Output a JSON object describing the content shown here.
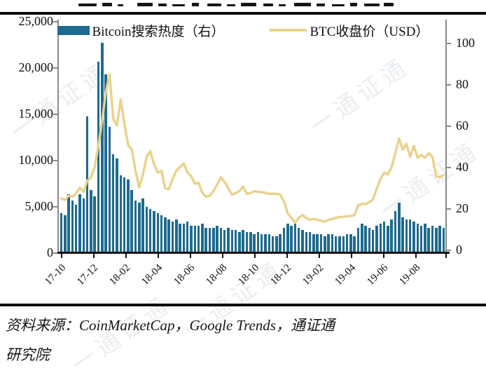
{
  "legend": {
    "bar_label": "Bitcoin搜索热度（右）",
    "line_label": "BTC收盘价（USD）"
  },
  "source": {
    "line1": "资料来源：CoinMarketCap，Google Trends，通证通",
    "line2": "研究院"
  },
  "watermark": {
    "text": "一通证通"
  },
  "colors": {
    "bar": "#1d6b8f",
    "line": "#e9d28c",
    "axis": "#8a8a8a",
    "x_axis": "#111111"
  },
  "chart_data": {
    "type": "combo",
    "subtype": "bar+line, dual axis",
    "x_axis": {
      "start": "2017-10",
      "frequency": "weekly",
      "tick_labels": [
        "17-10",
        "17-12",
        "18-02",
        "18-04",
        "18-06",
        "18-08",
        "18-10",
        "18-12",
        "19-02",
        "19-04",
        "19-06",
        "19-08"
      ]
    },
    "left_axis": {
      "used_by": "BTC收盘价（USD）",
      "min": 0,
      "max": 25000,
      "ticks": [
        {
          "v": 0,
          "label": "0"
        },
        {
          "v": 5000,
          "label": "5,000"
        },
        {
          "v": 10000,
          "label": "10,000"
        },
        {
          "v": 15000,
          "label": "15,000"
        },
        {
          "v": 20000,
          "label": "20,000"
        },
        {
          "v": 25000,
          "label": "25,000"
        }
      ]
    },
    "right_axis": {
      "used_by": "Bitcoin搜索热度（右）",
      "min": 0,
      "max": 100,
      "ticks": [
        {
          "v": 0,
          "label": "0"
        },
        {
          "v": 20,
          "label": "20"
        },
        {
          "v": 40,
          "label": "40"
        },
        {
          "v": 60,
          "label": "60"
        },
        {
          "v": 80,
          "label": "80"
        },
        {
          "v": 100,
          "label": "100"
        }
      ]
    },
    "series": [
      {
        "name": "Bitcoin搜索热度（右）",
        "type": "bar",
        "axis": "right",
        "color": "#1d6b8f",
        "values": [
          19,
          18,
          28,
          25,
          23,
          28,
          26,
          65,
          30,
          27,
          91,
          100,
          85,
          60,
          47,
          45,
          37,
          36,
          35,
          30,
          25,
          24,
          26,
          22,
          21,
          20,
          19,
          18,
          17,
          16,
          15,
          16,
          14,
          14,
          15,
          13,
          13,
          13,
          14,
          12,
          12,
          12,
          13,
          12,
          11,
          12,
          11,
          11,
          10,
          11,
          10,
          10,
          9,
          10,
          9,
          9,
          9,
          8,
          8,
          9,
          12,
          14,
          13,
          14,
          12,
          11,
          10,
          10,
          9,
          9,
          9,
          8,
          9,
          9,
          8,
          8,
          8,
          9,
          9,
          8,
          12,
          14,
          13,
          12,
          11,
          13,
          14,
          15,
          13,
          16,
          20,
          24,
          17,
          16,
          16,
          15,
          14,
          13,
          14,
          12,
          13,
          12,
          13,
          12
        ]
      },
      {
        "name": "BTC收盘价（USD）",
        "type": "line",
        "axis": "left",
        "color": "#e9d28c",
        "values": [
          5900,
          5750,
          6200,
          6100,
          6450,
          7100,
          6600,
          7800,
          8200,
          9300,
          11600,
          14300,
          17400,
          19300,
          14500,
          13800,
          16600,
          14000,
          11700,
          11200,
          8900,
          7100,
          8500,
          10400,
          11000,
          9600,
          8700,
          8900,
          7000,
          6900,
          8000,
          8900,
          9300,
          9700,
          8700,
          8300,
          7500,
          7600,
          6500,
          6100,
          6200,
          6700,
          7400,
          8200,
          7700,
          7000,
          6300,
          6500,
          6700,
          7200,
          6400,
          6500,
          6700,
          6600,
          6600,
          6500,
          6400,
          6400,
          6400,
          6300,
          5600,
          4300,
          3800,
          3300,
          3800,
          4100,
          3800,
          3600,
          3700,
          3600,
          3500,
          3400,
          3600,
          3700,
          3800,
          3900,
          3900,
          4000,
          4000,
          4100,
          5200,
          5300,
          5300,
          5500,
          5800,
          7000,
          8000,
          8700,
          8500,
          9300,
          10800,
          12400,
          11200,
          11800,
          10400,
          11600,
          10300,
          10600,
          10300,
          10800,
          10400,
          8300,
          8200,
          8400
        ]
      }
    ]
  }
}
